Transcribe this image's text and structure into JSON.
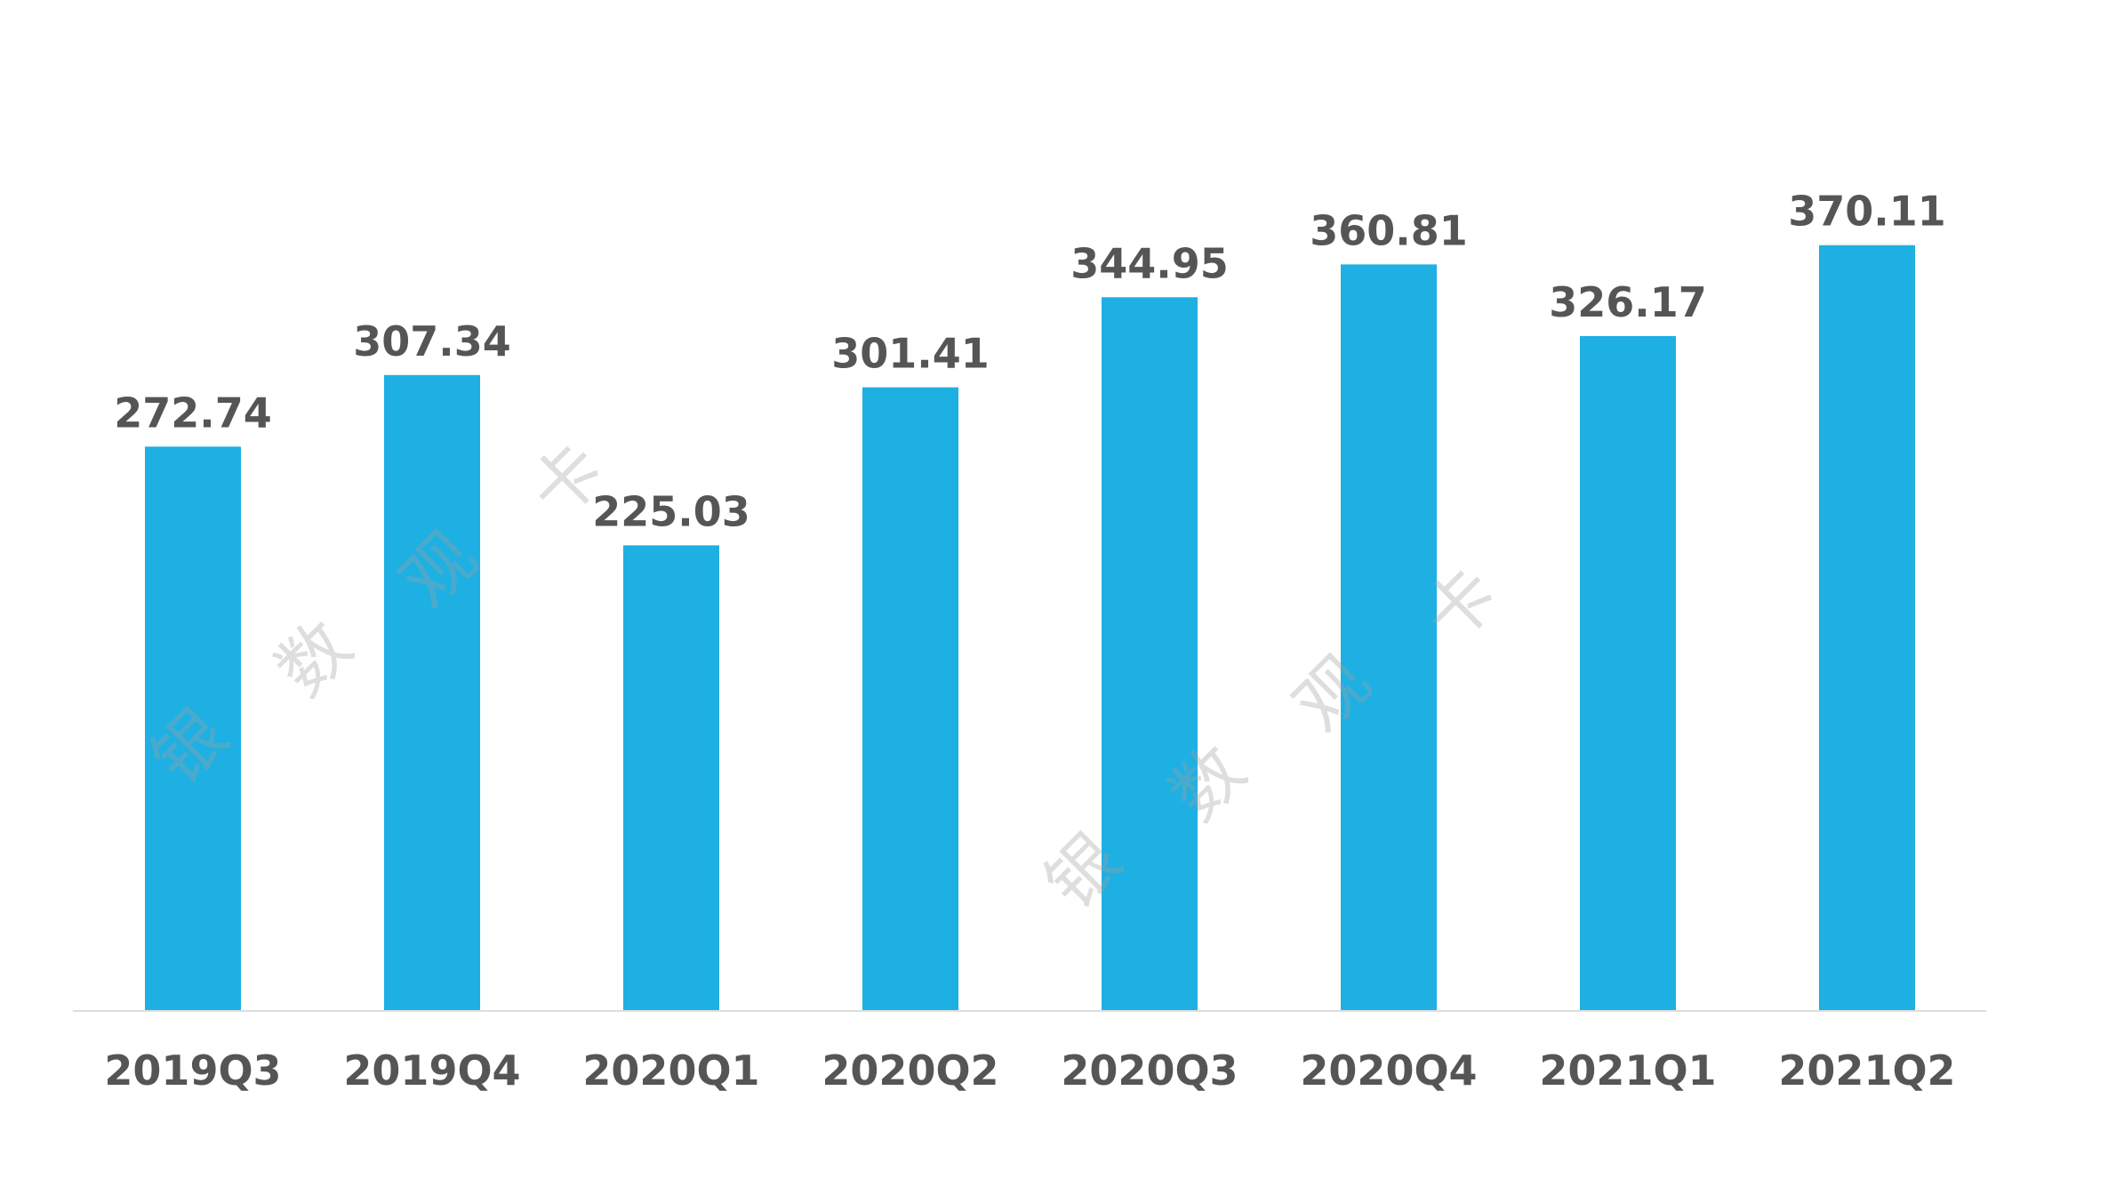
{
  "chart_data": {
    "type": "bar",
    "categories": [
      "2019Q3",
      "2019Q4",
      "2020Q1",
      "2020Q2",
      "2020Q3",
      "2020Q4",
      "2021Q1",
      "2021Q2"
    ],
    "values": [
      272.74,
      307.34,
      225.03,
      301.41,
      344.95,
      360.81,
      326.17,
      370.11
    ],
    "value_labels": [
      "272.74",
      "307.34",
      "225.03",
      "301.41",
      "344.95",
      "360.81",
      "326.17",
      "370.11"
    ],
    "ylim": [
      0,
      370
    ],
    "bar_color": "#1eb0e2",
    "label_color": "#555555",
    "grid": false,
    "legend": "none"
  },
  "watermark": {
    "chars": [
      "银",
      "数",
      "观",
      "卡"
    ],
    "color": "#a0a0a0"
  }
}
